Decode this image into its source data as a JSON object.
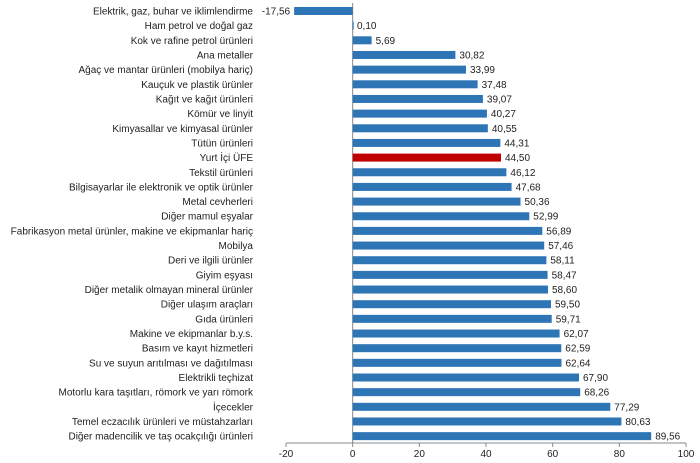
{
  "chart_data": {
    "type": "bar",
    "orientation": "horizontal",
    "categories": [
      "Elektrik, gaz, buhar ve iklimlendirme",
      "Ham petrol ve doğal gaz",
      "Kok ve rafine petrol ürünleri",
      "Ana metaller",
      "Ağaç ve mantar ürünleri (mobilya hariç)",
      "Kauçuk ve plastik ürünler",
      "Kağıt ve kağıt ürünleri",
      "Kömür ve linyit",
      "Kimyasallar ve kimyasal ürünler",
      "Tütün ürünleri",
      "Yurt İçi ÜFE",
      "Tekstil ürünleri",
      "Bilgisayarlar ile elektronik ve optik ürünler",
      "Metal cevherleri",
      "Diğer mamul eşyalar",
      "Fabrikasyon metal ürünler, makine ve ekipmanlar hariç",
      "Mobilya",
      "Deri ve ilgili ürünler",
      "Giyim eşyası",
      "Diğer metalik olmayan mineral ürünler",
      "Diğer ulaşım araçları",
      "Gıda ürünleri",
      "Makine ve ekipmanlar b.y.s.",
      "Basım ve kayıt hizmetleri",
      "Su ve suyun arıtılması ve dağıtılması",
      "Elektrikli teçhizat",
      "Motorlu kara taşıtları, römork ve yarı römork",
      "İçecekler",
      "Temel eczacılık ürünleri ve müstahzarları",
      "Diğer madencilik ve taş ocakçılığı ürünleri"
    ],
    "values": [
      -17.56,
      0.1,
      5.69,
      30.82,
      33.99,
      37.48,
      39.07,
      40.27,
      40.55,
      44.31,
      44.5,
      46.12,
      47.68,
      50.36,
      52.99,
      56.89,
      57.46,
      58.11,
      58.47,
      58.6,
      59.5,
      59.71,
      62.07,
      62.59,
      62.64,
      67.9,
      68.26,
      77.29,
      80.63,
      89.56
    ],
    "value_labels": [
      "-17,56",
      "0,10",
      "5,69",
      "30,82",
      "33,99",
      "37,48",
      "39,07",
      "40,27",
      "40,55",
      "44,31",
      "44,50",
      "46,12",
      "47,68",
      "50,36",
      "52,99",
      "56,89",
      "57,46",
      "58,11",
      "58,47",
      "58,60",
      "59,50",
      "59,71",
      "62,07",
      "62,59",
      "62,64",
      "67,90",
      "68,26",
      "77,29",
      "80,63",
      "89,56"
    ],
    "highlight": "Yurt İçi ÜFE",
    "xlim": [
      -20,
      100
    ],
    "xticks": [
      "-20",
      "0",
      "20",
      "40",
      "60",
      "80",
      "100"
    ],
    "xtick_values": [
      -20,
      0,
      20,
      40,
      60,
      80,
      100
    ],
    "grid": false,
    "legend": "none",
    "title": "",
    "xlabel": "",
    "ylabel": "",
    "colors": {
      "bar": "#2E75B6",
      "highlight": "#C00000",
      "axis": "#888888"
    }
  }
}
